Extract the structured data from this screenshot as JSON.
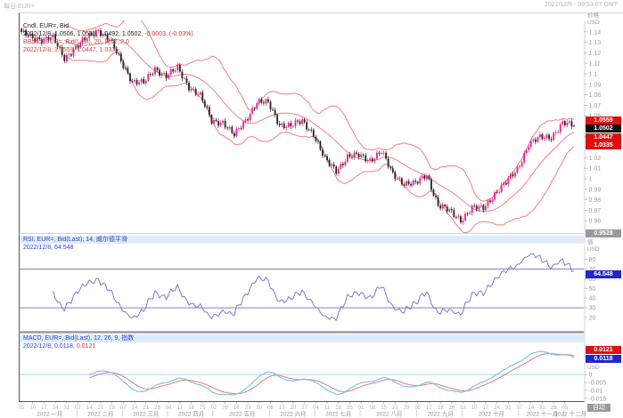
{
  "window": {
    "title_left": "每日 EUR=",
    "title_right": "2022/12/8 - 09:53:07 GMT"
  },
  "price_panel": {
    "legend": {
      "line1": "Cndl, EUR=, Bid",
      "line2_black": "2022/12/8, 1.0506, 1.0515, 1.0492, 1.0502,",
      "line2_red": " -0.0003, (-0.03%)",
      "line3": "BBand, EUR=, Bid(Last), 20, 简单, 2.0",
      "line4": "2022/12/8, 1.0559, 1.0447, 1.0335"
    },
    "axis": {
      "label_top": "价格",
      "label_unit": "USD",
      "ticks": [
        "1.14",
        "1.13",
        "1.12",
        "1.11",
        "1.1",
        "1.09",
        "1.08",
        "1.07",
        "1.06",
        "1.05",
        "1.04",
        "1.03",
        "1.02",
        "1.01",
        "1",
        "0.99",
        "0.98",
        "0.97",
        "0.96"
      ],
      "min_badge": "0.9528"
    },
    "badges": {
      "upper_band": "1.0559",
      "last": "1.0502",
      "mid_band": "1.0447",
      "lower_band": "1.0335"
    }
  },
  "rsi_panel": {
    "legend": {
      "line1": "RSI, EUR=, Bid(Last), 14, 威尔德平滑",
      "line2": "2022/12/8, 64.548"
    },
    "axis": {
      "label_top": "值",
      "label_unit": "USD",
      "ticks": [
        80,
        70,
        60,
        50,
        40,
        30,
        20
      ]
    },
    "badge": "64.548",
    "thresholds": [
      70,
      30
    ]
  },
  "macd_panel": {
    "legend": {
      "line1": "MACD, EUR=, Bid(Last), 12, 26, 9, 指数",
      "line2_blue": "2022/12/8, 0.0118,",
      "line2_red": " 0.0121"
    },
    "axis": {
      "label_top": "值",
      "label_unit": "USD",
      "ticks": [
        0.005,
        0,
        -0.005,
        -0.01,
        -0.015
      ]
    },
    "badges": {
      "signal": "0.0121",
      "macd": "0.0118"
    }
  },
  "x_axis": {
    "weeks": [
      [
        "03",
        "10",
        "17",
        "24",
        "31"
      ],
      [
        "07",
        "14",
        "21",
        "28"
      ],
      [
        "07",
        "14",
        "21",
        "28"
      ],
      [
        "04",
        "11",
        "18",
        "25"
      ],
      [
        "02",
        "09",
        "16",
        "23",
        "30"
      ],
      [
        "06",
        "13",
        "20",
        "27"
      ],
      [
        "04",
        "11",
        "18",
        "25"
      ],
      [
        "01",
        "08",
        "15",
        "22",
        "29"
      ],
      [
        "05",
        "12",
        "19",
        "26"
      ],
      [
        "03",
        "10",
        "17",
        "24",
        "31"
      ],
      [
        "07",
        "14",
        "21",
        "28"
      ],
      [
        "05"
      ]
    ],
    "months": [
      "2022 一月",
      "2022 二月",
      "2022 三月",
      "2022 四月",
      "2022 五月",
      "2022 六月",
      "2022 七月",
      "2022 八月",
      "2022 九月",
      "2022 十月",
      "2022 十一月",
      "2022 十二月"
    ],
    "auto_label": "自动"
  },
  "chart_data": {
    "type": "candlestick",
    "symbol": "EUR=",
    "price_type": "Bid",
    "interval": "daily",
    "start_date": "2022-01-03",
    "end_date": "2022-12-08",
    "price_range": [
      0.95,
      1.15
    ],
    "rsi_range": [
      9,
      86
    ],
    "weekly_closes": [
      1.1355,
      1.133,
      1.134,
      1.115,
      1.125,
      1.1345,
      1.142,
      1.132,
      1.112,
      1.093,
      1.091,
      1.105,
      1.098,
      1.105,
      1.088,
      1.079,
      1.055,
      1.054,
      1.041,
      1.056,
      1.073,
      1.072,
      1.052,
      1.05,
      1.055,
      1.043,
      1.018,
      1.008,
      1.021,
      1.022,
      1.018,
      1.026,
      1.004,
      0.996,
      0.995,
      1.004,
      0.975,
      0.969,
      0.961,
      0.972,
      0.972,
      0.986,
      0.996,
      1.009,
      1.033,
      1.039,
      1.04,
      1.053,
      1.0502
    ],
    "ohlc_today": {
      "date": "2022/12/8",
      "open": 1.0506,
      "high": 1.0515,
      "low": 1.0492,
      "close": 1.0502,
      "change": -0.0003,
      "change_pct": "-0.03%"
    },
    "indicators": {
      "bollinger": {
        "period": 20,
        "ma_type": "简单",
        "stdev": 2.0,
        "upper": 1.0559,
        "middle": 1.0447,
        "lower": 1.0335
      },
      "rsi": {
        "period": 14,
        "smoothing": "威尔德平滑",
        "value": 64.548,
        "overbought": 70,
        "oversold": 30
      },
      "macd": {
        "fast": 12,
        "slow": 26,
        "signal_period": 9,
        "method": "指数",
        "macd": 0.0118,
        "signal": 0.0121
      }
    }
  },
  "colors": {
    "candle_up": "#e6218e",
    "candle_down": "#222222",
    "bband": "#f08080",
    "rsi": "#7b7bd6",
    "rsi_threshold": "#8080cc",
    "macd": "#7fc4e8",
    "macd_signal": "#e07878",
    "zero_line": "#a8d8ee",
    "badge_red": "#e01010",
    "badge_black": "#111111",
    "badge_blue": "#2424cc",
    "badge_gray": "#9a9a9a"
  }
}
